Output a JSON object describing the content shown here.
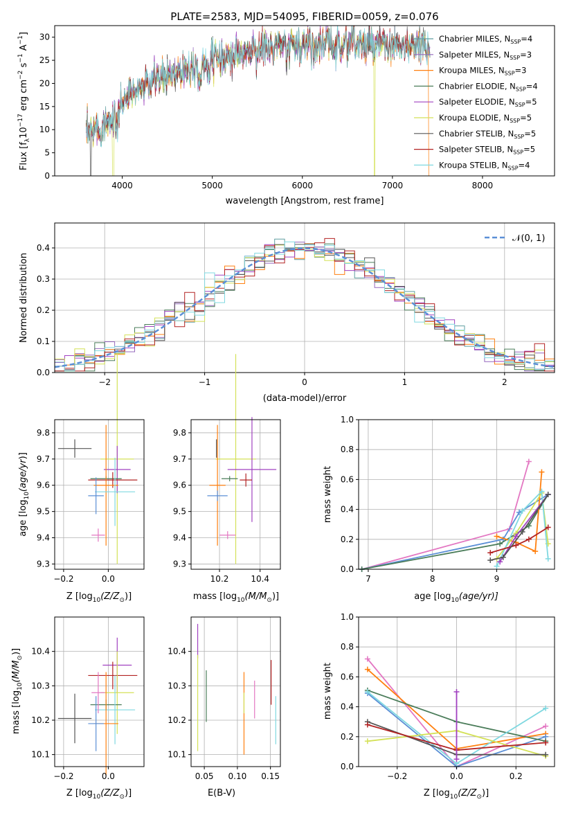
{
  "colors": {
    "Chabrier MILES": "#5f9ea0",
    "Salpeter MILES": "#9467bd",
    "Kroupa MILES": "#ff7f0e",
    "Chabrier ELODIE": "#4a7c59",
    "Salpeter ELODIE": "#a040c0",
    "Kroupa ELODIE": "#d4e157",
    "Chabrier STELIB": "#555555",
    "Salpeter STELIB": "#b22222",
    "Kroupa STELIB": "#7fd8e0",
    "pink": "#e377c2",
    "blue": "#5b8fd6",
    "normal": "#5b8fd6"
  },
  "spectrum": {
    "title": "PLATE=2583, MJD=54095, FIBERID=0059, z=0.076",
    "xlabel": "wavelength [Angstrom, rest frame]",
    "ylabel": "Flux [f",
    "ylabel_sub": "λ",
    "ylabel_rest": "10",
    "ylabel_exp": "−17",
    "ylabel_tail": " erg cm",
    "xticks": [
      "4000",
      "5000",
      "6000",
      "7000",
      "8000"
    ],
    "yticks": [
      "0",
      "5",
      "10",
      "15",
      "20",
      "25",
      "30"
    ],
    "legend": [
      {
        "name": "Chabrier MILES, N",
        "sub": "SSP",
        "val": "=4"
      },
      {
        "name": "Salpeter MILES, N",
        "sub": "SSP",
        "val": "=3"
      },
      {
        "name": "Kroupa MILES, N",
        "sub": "SSP",
        "val": "=3"
      },
      {
        "name": "Chabrier ELODIE, N",
        "sub": "SSP",
        "val": "=4"
      },
      {
        "name": "Salpeter ELODIE, N",
        "sub": "SSP",
        "val": "=5"
      },
      {
        "name": "Kroupa ELODIE, N",
        "sub": "SSP",
        "val": "=5"
      },
      {
        "name": "Chabrier STELIB, N",
        "sub": "SSP",
        "val": "=5"
      },
      {
        "name": "Salpeter STELIB, N",
        "sub": "SSP",
        "val": "=5"
      },
      {
        "name": "Kroupa STELIB, N",
        "sub": "SSP",
        "val": "=4"
      }
    ]
  },
  "hist": {
    "xlabel": "(data-model)/error",
    "ylabel": "Normed distribution",
    "xticks": [
      "−2",
      "−1",
      "0",
      "1",
      "2"
    ],
    "yticks": [
      "0.0",
      "0.1",
      "0.2",
      "0.3",
      "0.4"
    ],
    "legend_label": "𝒩(0, 1)"
  },
  "panels": {
    "age_z": {
      "xlabel": "Z [log",
      "xsub": "10",
      "xrest": "(Z/Z",
      "xsun": "⊙",
      "xend": ")]",
      "ylabel": "age  [log10(age/yr)]",
      "xticks": [
        "−0.2",
        "0.0"
      ],
      "yticks": [
        "9.3",
        "9.4",
        "9.5",
        "9.6",
        "9.7",
        "9.8"
      ]
    },
    "age_mass": {
      "xlabel": "mass [log",
      "xsub": "10",
      "xrest": "(M/M",
      "xsun": "⊙",
      "xend": ")]",
      "xticks": [
        "10.2",
        "10.4"
      ],
      "yticks": [
        "9.3",
        "9.4",
        "9.5",
        "9.6",
        "9.7",
        "9.8"
      ]
    },
    "mw_age": {
      "xlabel": "age  [log",
      "xsub": "10",
      "xrest": "(age/yr)]",
      "ylabel": "mass weight",
      "xticks": [
        "7",
        "8",
        "9"
      ],
      "yticks": [
        "0.0",
        "0.2",
        "0.4",
        "0.6",
        "0.8",
        "1.0"
      ]
    },
    "mass_z": {
      "xlabel": "Z [log",
      "xsub": "10",
      "xrest": "(Z/Z",
      "xsun": "⊙",
      "xend": ")]",
      "ylabel": "mass [log10(M/M⊙)]",
      "xticks": [
        "−0.2",
        "0.0"
      ],
      "yticks": [
        "10.1",
        "10.2",
        "10.3",
        "10.4"
      ]
    },
    "mass_ebv": {
      "xlabel": "E(B-V)",
      "xticks": [
        "0.05",
        "0.10",
        "0.15"
      ],
      "yticks": [
        "10.1",
        "10.2",
        "10.3",
        "10.4"
      ]
    },
    "mw_z": {
      "xlabel": "Z [log",
      "xsub": "10",
      "xrest": "(Z/Z",
      "xsun": "⊙",
      "xend": ")]",
      "ylabel": "mass weight",
      "xticks": [
        "−0.2",
        "0.0",
        "0.2"
      ],
      "yticks": [
        "0.0",
        "0.2",
        "0.4",
        "0.6",
        "0.8",
        "1.0"
      ]
    }
  },
  "chart_data": [
    {
      "type": "line",
      "title": "PLATE=2583, MJD=54095, FIBERID=0059, z=0.076",
      "xlabel": "wavelength [Angstrom, rest frame]",
      "ylabel": "Flux [fλ 10^-17 erg cm^-2 s^-1 A^-1]",
      "xlim": [
        3250,
        8800
      ],
      "ylim": [
        0,
        32.5
      ],
      "grid": false,
      "legend_position": "top-right",
      "continuum": {
        "x": [
          3600,
          3800,
          3950,
          4100,
          4400,
          4800,
          5200,
          5600,
          6000,
          6500,
          7000,
          7400
        ],
        "y": [
          9,
          11,
          15,
          18,
          21,
          24,
          26,
          27.5,
          28.5,
          28.5,
          28,
          27.5
        ]
      },
      "series": [
        {
          "name": "Chabrier MILES, NSSP=4"
        },
        {
          "name": "Salpeter MILES, NSSP=3"
        },
        {
          "name": "Kroupa MILES, NSSP=3"
        },
        {
          "name": "Chabrier ELODIE, NSSP=4"
        },
        {
          "name": "Salpeter ELODIE, NSSP=5"
        },
        {
          "name": "Kroupa ELODIE, NSSP=5"
        },
        {
          "name": "Chabrier STELIB, NSSP=5"
        },
        {
          "name": "Salpeter STELIB, NSSP=5"
        },
        {
          "name": "Kroupa STELIB, NSSP=4"
        }
      ]
    },
    {
      "type": "step-histogram",
      "xlabel": "(data-model)/error",
      "ylabel": "Normed distribution",
      "xlim": [
        -2.5,
        2.5
      ],
      "ylim": [
        0,
        0.48
      ],
      "grid": true,
      "reference": {
        "name": "N(0,1)",
        "mean": 0,
        "sigma": 1
      },
      "series_count": 9
    },
    {
      "type": "scatter-errorbars",
      "xlabel": "Z [log10(Z/Zsun)]",
      "ylabel": "age [log10(age/yr)]",
      "xlim": [
        -0.24,
        0.16
      ],
      "ylim": [
        9.28,
        9.85
      ],
      "points": [
        {
          "series": "Chabrier STELIB",
          "x": -0.15,
          "xerr": 0.075,
          "y": 9.74,
          "yerr": 0.035
        },
        {
          "series": "Kroupa ELODIE",
          "x": 0.04,
          "xerr": 0.075,
          "y": 9.7,
          "yerr": 0.4
        },
        {
          "series": "Salpeter ELODIE",
          "x": 0.04,
          "xerr": 0.06,
          "y": 9.66,
          "yerr": 0.09
        },
        {
          "series": "Chabrier ELODIE",
          "x": -0.01,
          "xerr": 0.07,
          "y": 9.625,
          "yerr": 0.01
        },
        {
          "series": "Salpeter STELIB",
          "x": 0.02,
          "xerr": 0.11,
          "y": 9.62,
          "yerr": 0.03
        },
        {
          "series": "Kroupa MILES",
          "x": -0.01,
          "xerr": 0.055,
          "y": 9.6,
          "yerr": 0.23
        },
        {
          "series": "Kroupa STELIB",
          "x": 0.03,
          "xerr": 0.09,
          "y": 9.575,
          "yerr": 0.13
        },
        {
          "series": "blue",
          "x": -0.055,
          "xerr": 0.035,
          "y": 9.56,
          "yerr": 0.07
        },
        {
          "series": "pink",
          "x": -0.045,
          "xerr": 0.03,
          "y": 9.41,
          "yerr": 0.025
        }
      ]
    },
    {
      "type": "scatter-errorbars",
      "xlabel": "mass [log10(M/Msun)]",
      "xlim": [
        10.06,
        10.5
      ],
      "ylim": [
        9.28,
        9.85
      ],
      "points": [
        {
          "series": "Chabrier STELIB",
          "x": 10.185,
          "xerr": 0.0,
          "y": 9.74,
          "yerr": 0.035
        },
        {
          "series": "Kroupa ELODIE",
          "x": 10.28,
          "xerr": 0.1,
          "y": 9.7,
          "yerr": 0.4
        },
        {
          "series": "Salpeter ELODIE",
          "x": 10.36,
          "xerr": 0.12,
          "y": 9.66,
          "yerr": 0.2
        },
        {
          "series": "Salpeter STELIB",
          "x": 10.33,
          "xerr": 0.03,
          "y": 9.62,
          "yerr": 0.025
        },
        {
          "series": "Kroupa MILES",
          "x": 10.19,
          "xerr": 0.04,
          "y": 9.6,
          "yerr": 0.23
        },
        {
          "series": "Chabrier ELODIE",
          "x": 10.25,
          "xerr": 0.04,
          "y": 9.625,
          "yerr": 0.01
        },
        {
          "series": "blue",
          "x": 10.19,
          "xerr": 0.05,
          "y": 9.56,
          "yerr": 0.02
        },
        {
          "series": "pink",
          "x": 10.24,
          "xerr": 0.04,
          "y": 9.41,
          "yerr": 0.015
        }
      ]
    },
    {
      "type": "line",
      "xlabel": "age [log10(age/yr)]",
      "ylabel": "mass weight",
      "xlim": [
        6.85,
        9.9
      ],
      "ylim": [
        0,
        1
      ],
      "series": [
        {
          "name": "pink",
          "x": [
            6.9,
            9.2,
            9.5
          ],
          "y": [
            0.0,
            0.27,
            0.72
          ]
        },
        {
          "name": "blue",
          "x": [
            6.9,
            9.1,
            9.35,
            9.8
          ],
          "y": [
            0.0,
            0.2,
            0.38,
            0.5
          ]
        },
        {
          "name": "Chabrier ELODIE",
          "x": [
            6.9,
            9.05,
            9.5,
            9.8
          ],
          "y": [
            0.0,
            0.17,
            0.29,
            0.5
          ]
        },
        {
          "name": "Kroupa MILES",
          "x": [
            9.0,
            9.3,
            9.6,
            9.7
          ],
          "y": [
            0.22,
            0.18,
            0.12,
            0.65
          ]
        },
        {
          "name": "Kroupa ELODIE",
          "x": [
            9.0,
            9.3,
            9.7,
            9.8
          ],
          "y": [
            0.07,
            0.24,
            0.51,
            0.17
          ]
        },
        {
          "name": "Kroupa STELIB",
          "x": [
            9.0,
            9.4,
            9.7,
            9.8
          ],
          "y": [
            0.02,
            0.39,
            0.52,
            0.07
          ]
        },
        {
          "name": "Salpeter ELODIE",
          "x": [
            9.05,
            9.3,
            9.8
          ],
          "y": [
            0.05,
            0.22,
            0.5
          ]
        },
        {
          "name": "Salpeter STELIB",
          "x": [
            8.9,
            9.3,
            9.5,
            9.8
          ],
          "y": [
            0.11,
            0.16,
            0.2,
            0.28
          ]
        },
        {
          "name": "Chabrier STELIB",
          "x": [
            8.9,
            9.1,
            9.4,
            9.8
          ],
          "y": [
            0.06,
            0.08,
            0.25,
            0.5
          ]
        }
      ]
    },
    {
      "type": "scatter-errorbars",
      "xlabel": "Z [log10(Z/Zsun)]",
      "ylabel": "mass [log10(M/Msun)]",
      "xlim": [
        -0.24,
        0.16
      ],
      "ylim": [
        10.065,
        10.5
      ],
      "points": [
        {
          "series": "Chabrier STELIB",
          "x": -0.15,
          "xerr": 0.075,
          "y": 10.205,
          "yerr": 0.072
        },
        {
          "series": "Salpeter ELODIE",
          "x": 0.04,
          "xerr": 0.065,
          "y": 10.36,
          "yerr": 0.08
        },
        {
          "series": "Salpeter STELIB",
          "x": 0.02,
          "xerr": 0.11,
          "y": 10.33,
          "yerr": 0.04
        },
        {
          "series": "Kroupa ELODIE",
          "x": 0.04,
          "xerr": 0.075,
          "y": 10.28,
          "yerr": 0.12
        },
        {
          "series": "Chabrier ELODIE",
          "x": -0.01,
          "xerr": 0.07,
          "y": 10.245,
          "yerr": 0.015
        },
        {
          "series": "Kroupa STELIB",
          "x": 0.03,
          "xerr": 0.09,
          "y": 10.23,
          "yerr": 0.1
        },
        {
          "series": "Kroupa MILES",
          "x": -0.01,
          "xerr": 0.055,
          "y": 10.19,
          "yerr": 0.15
        },
        {
          "series": "blue",
          "x": -0.055,
          "xerr": 0.035,
          "y": 10.19,
          "yerr": 0.08
        },
        {
          "series": "pink",
          "x": -0.045,
          "xerr": 0.03,
          "y": 10.28,
          "yerr": 0.06
        }
      ]
    },
    {
      "type": "errorbars",
      "xlabel": "E(B-V)",
      "xlim": [
        0.03,
        0.165
      ],
      "ylim": [
        10.065,
        10.5
      ],
      "points": [
        {
          "series": "Salpeter ELODIE",
          "x": 0.04,
          "y": 10.43,
          "yerr": 0.05
        },
        {
          "series": "Kroupa ELODIE",
          "x": 0.04,
          "y": 10.25,
          "yerr": 0.14
        },
        {
          "series": "Chabrier ELODIE",
          "x": 0.053,
          "y": 10.27,
          "yerr": 0.075
        },
        {
          "series": "Kroupa MILES",
          "x": 0.11,
          "y": 10.22,
          "yerr": 0.12
        },
        {
          "series": "Kroupa ELODIE",
          "x": 0.11,
          "y": 10.25,
          "yerr": 0.03
        },
        {
          "series": "pink",
          "x": 0.126,
          "y": 10.26,
          "yerr": 0.055
        },
        {
          "series": "Salpeter STELIB",
          "x": 0.151,
          "y": 10.31,
          "yerr": 0.065
        },
        {
          "series": "Kroupa STELIB",
          "x": 0.158,
          "y": 10.2,
          "yerr": 0.07
        }
      ]
    },
    {
      "type": "line",
      "xlabel": "Z [log10(Z/Zsun)]",
      "ylabel": "mass weight",
      "xlim": [
        -0.33,
        0.33
      ],
      "ylim": [
        0,
        1
      ],
      "series": [
        {
          "name": "pink",
          "x": [
            -0.3,
            0.0,
            0.3
          ],
          "y": [
            0.72,
            0.0,
            0.27
          ]
        },
        {
          "name": "Kroupa MILES",
          "x": [
            -0.3,
            0.0,
            0.3
          ],
          "y": [
            0.65,
            0.12,
            0.22
          ]
        },
        {
          "name": "blue",
          "x": [
            -0.3,
            0.0,
            0.3
          ],
          "y": [
            0.49,
            0.0,
            0.2
          ]
        },
        {
          "name": "Chabrier ELODIE",
          "x": [
            -0.3,
            0.0,
            0.3
          ],
          "y": [
            0.51,
            0.3,
            0.17
          ]
        },
        {
          "name": "Kroupa STELIB",
          "x": [
            -0.3,
            0.0,
            0.3
          ],
          "y": [
            0.5,
            0.02,
            0.39
          ]
        },
        {
          "name": "Kroupa ELODIE",
          "x": [
            -0.3,
            0.0,
            0.3
          ],
          "y": [
            0.17,
            0.24,
            0.07
          ]
        },
        {
          "name": "Chabrier STELIB",
          "x": [
            -0.3,
            0.0,
            0.3
          ],
          "y": [
            0.3,
            0.08,
            0.08
          ]
        },
        {
          "name": "Salpeter STELIB",
          "x": [
            -0.3,
            0.0,
            0.3
          ],
          "y": [
            0.28,
            0.11,
            0.16
          ]
        },
        {
          "name": "Salpeter ELODIE",
          "x": [
            0.0,
            0.0
          ],
          "y": [
            0.5,
            0.05
          ]
        }
      ]
    }
  ]
}
